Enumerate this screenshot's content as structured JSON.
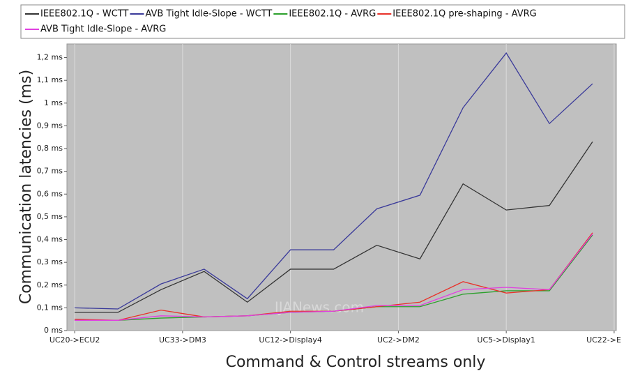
{
  "chart_data": {
    "type": "line",
    "y_label": "Communication latencies (ms)",
    "x_label": "Command & Control streams only",
    "annotation": "IJANews.com",
    "x": [
      0,
      1,
      2,
      3,
      4,
      5,
      6,
      7,
      8,
      9,
      10,
      11,
      12
    ],
    "xlim": [
      -0.18,
      12.55
    ],
    "xticks": [
      {
        "value": 0,
        "label": "UC20->ECU2"
      },
      {
        "value": 2.5,
        "label": "UC33->DM3"
      },
      {
        "value": 5,
        "label": "UC12->Display4"
      },
      {
        "value": 7.5,
        "label": "UC2->DM2"
      },
      {
        "value": 10,
        "label": "UC5->Display1"
      },
      {
        "value": 12.5,
        "label": "UC22->E"
      }
    ],
    "ylim": [
      0,
      1.26
    ],
    "yticks": [
      {
        "value": 0,
        "label": "0 ms"
      },
      {
        "value": 0.1,
        "label": "0,1 ms"
      },
      {
        "value": 0.2,
        "label": "0,2 ms"
      },
      {
        "value": 0.3,
        "label": "0,3 ms"
      },
      {
        "value": 0.4,
        "label": "0,4 ms"
      },
      {
        "value": 0.5,
        "label": "0,5 ms"
      },
      {
        "value": 0.6,
        "label": "0,6 ms"
      },
      {
        "value": 0.7,
        "label": "0,7 ms"
      },
      {
        "value": 0.8,
        "label": "0,8 ms"
      },
      {
        "value": 0.9,
        "label": "0,9 ms"
      },
      {
        "value": 1,
        "label": "1 ms"
      },
      {
        "value": 1.1,
        "label": "1,1 ms"
      },
      {
        "value": 1.2,
        "label": "1,2 ms"
      }
    ],
    "grid": true,
    "series": [
      {
        "name": "IEEE802.1Q - WCTT",
        "color": "#333333",
        "values": [
          0.08,
          0.08,
          0.18,
          0.26,
          0.125,
          0.27,
          0.27,
          0.375,
          0.315,
          0.645,
          0.53,
          0.55,
          0.83
        ]
      },
      {
        "name": "AVB Tight Idle-Slope - WCTT",
        "color": "#3a3a9a",
        "values": [
          0.1,
          0.095,
          0.205,
          0.27,
          0.14,
          0.355,
          0.355,
          0.535,
          0.595,
          0.98,
          1.22,
          0.91,
          1.085
        ]
      },
      {
        "name": "IEEE802.1Q - AVRG",
        "color": "#2ca02c",
        "values": [
          0.045,
          0.045,
          0.055,
          0.06,
          0.065,
          0.08,
          0.085,
          0.105,
          0.105,
          0.16,
          0.175,
          0.175,
          0.42
        ]
      },
      {
        "name": "IEEE802.1Q pre-shaping - AVRG",
        "color": "#e8322a",
        "values": [
          0.05,
          0.045,
          0.09,
          0.06,
          0.065,
          0.085,
          0.085,
          0.105,
          0.125,
          0.215,
          0.165,
          0.18,
          0.43
        ]
      },
      {
        "name": "AVB Tight Idle-Slope - AVRG",
        "color": "#e040e0",
        "values": [
          0.045,
          0.045,
          0.065,
          0.06,
          0.065,
          0.08,
          0.085,
          0.11,
          0.11,
          0.18,
          0.19,
          0.18,
          0.425
        ]
      }
    ]
  }
}
